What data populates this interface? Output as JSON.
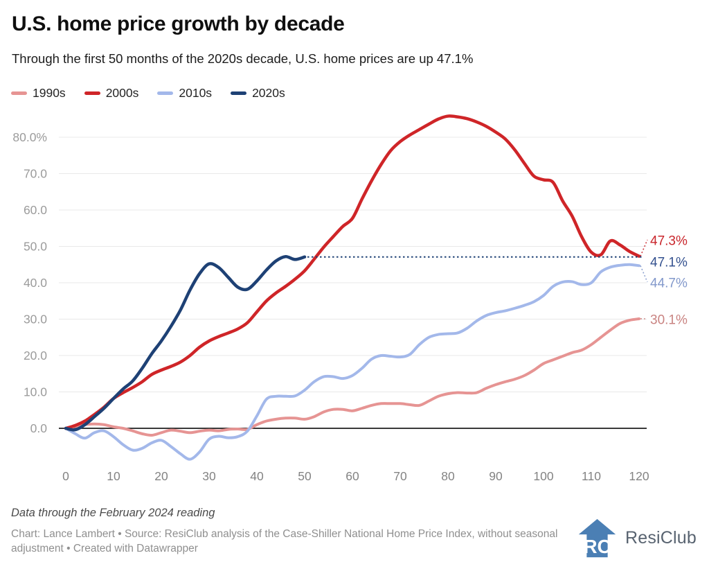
{
  "title": "U.S. home price growth by decade",
  "subtitle": "Through the first 50 months of the 2020s decade, U.S. home prices are up 47.1%",
  "footer": {
    "note": "Data through the February 2024 reading",
    "credit": "Chart: Lance Lambert • Source: ResiClub analysis of the Case-Shiller National Home Price Index, without seasonal adjustment • Created with Datawrapper"
  },
  "logo": {
    "monogram": "RC",
    "text": "ResiClub",
    "color": "#4b7fb4"
  },
  "chart_data": {
    "type": "line",
    "title": "U.S. home price growth by decade",
    "xlabel": "",
    "ylabel": "",
    "xlim": [
      0,
      121
    ],
    "ylim": [
      -10,
      88
    ],
    "grid": true,
    "legend_position": "top-left",
    "x_ticks": [
      {
        "value": 0,
        "label": "0"
      },
      {
        "value": 10,
        "label": "10"
      },
      {
        "value": 20,
        "label": "20"
      },
      {
        "value": 30,
        "label": "30"
      },
      {
        "value": 40,
        "label": "40"
      },
      {
        "value": 50,
        "label": "50"
      },
      {
        "value": 60,
        "label": "60"
      },
      {
        "value": 70,
        "label": "70"
      },
      {
        "value": 80,
        "label": "80"
      },
      {
        "value": 90,
        "label": "90"
      },
      {
        "value": 100,
        "label": "100"
      },
      {
        "value": 110,
        "label": "110"
      },
      {
        "value": 120,
        "label": "120"
      }
    ],
    "y_ticks": [
      {
        "value": 80,
        "label": "80.0%"
      },
      {
        "value": 70,
        "label": "70.0"
      },
      {
        "value": 60,
        "label": "60.0"
      },
      {
        "value": 50,
        "label": "50.0"
      },
      {
        "value": 40,
        "label": "40.0"
      },
      {
        "value": 30,
        "label": "30.0"
      },
      {
        "value": 20,
        "label": "20.0"
      },
      {
        "value": 10,
        "label": "10.0"
      },
      {
        "value": 0,
        "label": "0.0"
      }
    ],
    "series": [
      {
        "name": "1990s",
        "color": "#e69493",
        "label_color": "#c98381",
        "end_label": "30.1%",
        "stroke_width": 4,
        "x": [
          0,
          2,
          4,
          6,
          8,
          10,
          12,
          14,
          16,
          18,
          20,
          22,
          24,
          26,
          28,
          30,
          32,
          34,
          36,
          38,
          40,
          42,
          44,
          46,
          48,
          50,
          52,
          54,
          56,
          58,
          60,
          62,
          64,
          66,
          68,
          70,
          72,
          74,
          76,
          78,
          80,
          82,
          84,
          86,
          88,
          90,
          92,
          94,
          96,
          98,
          100,
          102,
          104,
          106,
          108,
          110,
          112,
          114,
          116,
          118,
          120
        ],
        "values": [
          0,
          0.5,
          1,
          1.2,
          1,
          0.4,
          0,
          -0.7,
          -1.5,
          -1.9,
          -1.2,
          -0.5,
          -0.8,
          -1.2,
          -0.8,
          -0.5,
          -0.7,
          -0.3,
          -0.2,
          -0.3,
          1,
          2,
          2.5,
          2.8,
          2.8,
          2.5,
          3.2,
          4.5,
          5.2,
          5.2,
          4.8,
          5.5,
          6.3,
          6.8,
          6.8,
          6.8,
          6.5,
          6.3,
          7.5,
          8.8,
          9.5,
          9.8,
          9.7,
          9.8,
          11,
          12,
          12.8,
          13.5,
          14.5,
          16,
          17.8,
          18.8,
          19.8,
          20.8,
          21.5,
          23,
          25,
          27,
          28.8,
          29.7,
          30.1
        ]
      },
      {
        "name": "2000s",
        "color": "#cf2528",
        "label_color": "#c9252b",
        "end_label": "47.3%",
        "stroke_width": 4.5,
        "x": [
          0,
          2,
          4,
          6,
          8,
          10,
          12,
          14,
          16,
          18,
          20,
          22,
          24,
          26,
          28,
          30,
          32,
          34,
          36,
          38,
          40,
          42,
          44,
          46,
          48,
          50,
          52,
          54,
          56,
          58,
          60,
          62,
          64,
          66,
          68,
          70,
          72,
          74,
          76,
          78,
          80,
          82,
          84,
          86,
          88,
          90,
          92,
          94,
          96,
          98,
          100,
          102,
          104,
          106,
          108,
          110,
          112,
          114,
          116,
          118,
          120
        ],
        "values": [
          0,
          0.8,
          2,
          3.8,
          5.8,
          8.2,
          9.8,
          11.2,
          12.8,
          14.8,
          16,
          17,
          18.2,
          20,
          22.3,
          24,
          25.2,
          26.2,
          27.3,
          29,
          32,
          35,
          37.2,
          39,
          41,
          43.3,
          46.5,
          49.8,
          52.7,
          55.5,
          57.7,
          63,
          68,
          72.5,
          76.3,
          78.8,
          80.6,
          82.1,
          83.6,
          85,
          85.8,
          85.6,
          85.1,
          84.2,
          83,
          81.4,
          79.5,
          76.5,
          72.8,
          69.3,
          68.3,
          67.6,
          62.5,
          58.3,
          52.6,
          48.4,
          47.7,
          51.5,
          50.4,
          48.6,
          47.3
        ]
      },
      {
        "name": "2010s",
        "color": "#a3b8ea",
        "label_color": "#8298cb",
        "end_label": "44.7%",
        "stroke_width": 4,
        "x": [
          0,
          2,
          4,
          6,
          8,
          10,
          12,
          14,
          16,
          18,
          20,
          22,
          24,
          26,
          28,
          30,
          32,
          34,
          36,
          38,
          40,
          42,
          44,
          46,
          48,
          50,
          52,
          54,
          56,
          58,
          60,
          62,
          64,
          66,
          68,
          70,
          72,
          74,
          76,
          78,
          80,
          82,
          84,
          86,
          88,
          90,
          92,
          94,
          96,
          98,
          100,
          102,
          104,
          106,
          108,
          110,
          112,
          114,
          116,
          118,
          120
        ],
        "values": [
          0,
          -1.5,
          -2.7,
          -1.2,
          -0.7,
          -2.3,
          -4.5,
          -6,
          -5.5,
          -4,
          -3.3,
          -5,
          -7,
          -8.5,
          -6.5,
          -3,
          -2.2,
          -2.6,
          -2.3,
          -0.8,
          3.4,
          8,
          8.8,
          8.8,
          8.9,
          10.5,
          12.8,
          14.2,
          14.2,
          13.7,
          14.5,
          16.5,
          19,
          20,
          19.8,
          19.6,
          20.3,
          23,
          25,
          25.8,
          26,
          26.2,
          27.5,
          29.5,
          31,
          31.8,
          32.3,
          33,
          33.8,
          34.8,
          36.5,
          39,
          40.2,
          40.3,
          39.5,
          40,
          43,
          44.3,
          44.8,
          45,
          44.7
        ]
      },
      {
        "name": "2020s",
        "color": "#1e4175",
        "label_color": "#34518f",
        "end_label": "47.1%",
        "stroke_width": 4.5,
        "x": [
          0,
          2,
          4,
          6,
          8,
          10,
          12,
          14,
          16,
          18,
          20,
          22,
          24,
          26,
          28,
          30,
          32,
          34,
          36,
          38,
          40,
          42,
          44,
          46,
          48,
          50
        ],
        "values": [
          0,
          -0.4,
          1,
          3.2,
          5.5,
          8.2,
          10.8,
          13,
          16.5,
          20.5,
          24,
          28,
          32.5,
          38,
          42.5,
          45.2,
          44.2,
          41.5,
          38.8,
          38.2,
          40.5,
          43.5,
          46,
          47.2,
          46.4,
          47.1
        ],
        "projection": {
          "from_month": 50,
          "to_month": 120.8,
          "value": 47.1
        }
      }
    ]
  }
}
